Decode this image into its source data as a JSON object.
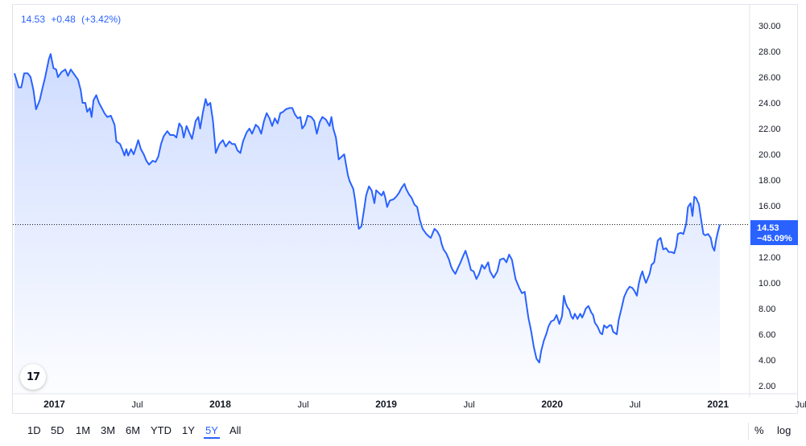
{
  "quote": {
    "price": "14.53",
    "change": "+0.48",
    "change_pct": "(+3.42%)"
  },
  "last_price_label": {
    "price": "14.53",
    "pct": "−45.09%"
  },
  "logo_text": "17",
  "colors": {
    "line": "#2962ff",
    "area_top": "#c9d8ff",
    "accent": "#2962ff",
    "text": "#131722",
    "grid": "#e0e3eb"
  },
  "toolbar": {
    "ranges": [
      "1D",
      "5D",
      "1M",
      "3M",
      "6M",
      "YTD",
      "1Y",
      "5Y",
      "All"
    ],
    "active_range": "5Y",
    "percent_label": "%",
    "log_label": "log"
  },
  "chart_data": {
    "type": "area",
    "title": "",
    "xlabel": "",
    "ylabel": "",
    "ylim": [
      1.0,
      31.0
    ],
    "y_ticks": [
      "30.00",
      "28.00",
      "26.00",
      "24.00",
      "22.00",
      "20.00",
      "18.00",
      "16.00",
      "12.00",
      "10.00",
      "8.00",
      "6.00",
      "4.00",
      "2.00"
    ],
    "x_ticks": [
      {
        "label": "2017",
        "bold": true,
        "t": 2017.0
      },
      {
        "label": "Jul",
        "bold": false,
        "t": 2017.5
      },
      {
        "label": "2018",
        "bold": true,
        "t": 2018.0
      },
      {
        "label": "Jul",
        "bold": false,
        "t": 2018.5
      },
      {
        "label": "2019",
        "bold": true,
        "t": 2019.0
      },
      {
        "label": "Jul",
        "bold": false,
        "t": 2019.5
      },
      {
        "label": "2020",
        "bold": true,
        "t": 2020.0
      },
      {
        "label": "Jul",
        "bold": false,
        "t": 2020.5
      },
      {
        "label": "2021",
        "bold": true,
        "t": 2021.0
      },
      {
        "label": "Jul",
        "bold": false,
        "t": 2021.5
      }
    ],
    "last_value": 14.53,
    "series": [
      {
        "values": [
          [
            2016.76,
            26.3
          ],
          [
            2016.785,
            25.2
          ],
          [
            2016.801,
            25.2
          ],
          [
            2016.818,
            26.3
          ],
          [
            2016.84,
            26.3
          ],
          [
            2016.857,
            26.0
          ],
          [
            2016.874,
            25.0
          ],
          [
            2016.89,
            23.5
          ],
          [
            2016.912,
            24.2
          ],
          [
            2016.928,
            25.1
          ],
          [
            2016.945,
            26.0
          ],
          [
            2016.967,
            27.4
          ],
          [
            2016.978,
            27.8
          ],
          [
            2016.995,
            26.7
          ],
          [
            2017.011,
            26.6
          ],
          [
            2017.022,
            26.0
          ],
          [
            2017.044,
            26.4
          ],
          [
            2017.066,
            26.6
          ],
          [
            2017.082,
            26.1
          ],
          [
            2017.099,
            26.6
          ],
          [
            2017.121,
            26.2
          ],
          [
            2017.143,
            25.8
          ],
          [
            2017.159,
            25.0
          ],
          [
            2017.17,
            24.0
          ],
          [
            2017.187,
            24.0
          ],
          [
            2017.198,
            23.3
          ],
          [
            2017.214,
            23.6
          ],
          [
            2017.225,
            22.9
          ],
          [
            2017.236,
            24.2
          ],
          [
            2017.253,
            24.6
          ],
          [
            2017.269,
            24.0
          ],
          [
            2017.286,
            23.6
          ],
          [
            2017.302,
            23.2
          ],
          [
            2017.319,
            22.9
          ],
          [
            2017.341,
            23.0
          ],
          [
            2017.363,
            22.3
          ],
          [
            2017.374,
            21.0
          ],
          [
            2017.396,
            20.8
          ],
          [
            2017.412,
            20.3
          ],
          [
            2017.423,
            19.9
          ],
          [
            2017.434,
            20.4
          ],
          [
            2017.445,
            19.9
          ],
          [
            2017.462,
            20.4
          ],
          [
            2017.478,
            20.0
          ],
          [
            2017.489,
            20.4
          ],
          [
            2017.506,
            21.1
          ],
          [
            2017.522,
            20.4
          ],
          [
            2017.539,
            20.0
          ],
          [
            2017.555,
            19.5
          ],
          [
            2017.571,
            19.2
          ],
          [
            2017.593,
            19.5
          ],
          [
            2017.61,
            19.4
          ],
          [
            2017.626,
            19.8
          ],
          [
            2017.643,
            20.8
          ],
          [
            2017.659,
            21.4
          ],
          [
            2017.681,
            21.8
          ],
          [
            2017.698,
            21.5
          ],
          [
            2017.72,
            21.5
          ],
          [
            2017.736,
            21.3
          ],
          [
            2017.753,
            22.4
          ],
          [
            2017.769,
            22.1
          ],
          [
            2017.78,
            21.3
          ],
          [
            2017.797,
            22.2
          ],
          [
            2017.813,
            21.7
          ],
          [
            2017.83,
            21.2
          ],
          [
            2017.852,
            22.6
          ],
          [
            2017.868,
            22.9
          ],
          [
            2017.879,
            22.0
          ],
          [
            2017.896,
            23.3
          ],
          [
            2017.912,
            24.3
          ],
          [
            2017.923,
            23.8
          ],
          [
            2017.94,
            24.0
          ],
          [
            2017.956,
            22.6
          ],
          [
            2017.973,
            20.1
          ],
          [
            2017.995,
            20.8
          ],
          [
            2018.016,
            21.1
          ],
          [
            2018.033,
            20.6
          ],
          [
            2018.055,
            21.0
          ],
          [
            2018.071,
            20.8
          ],
          [
            2018.088,
            20.8
          ],
          [
            2018.104,
            20.3
          ],
          [
            2018.121,
            20.1
          ],
          [
            2018.137,
            21.0
          ],
          [
            2018.159,
            21.7
          ],
          [
            2018.176,
            22.0
          ],
          [
            2018.192,
            21.6
          ],
          [
            2018.214,
            22.3
          ],
          [
            2018.231,
            22.1
          ],
          [
            2018.247,
            21.6
          ],
          [
            2018.264,
            22.6
          ],
          [
            2018.28,
            23.2
          ],
          [
            2018.297,
            22.8
          ],
          [
            2018.313,
            22.2
          ],
          [
            2018.329,
            22.8
          ],
          [
            2018.346,
            22.4
          ],
          [
            2018.362,
            23.2
          ],
          [
            2018.379,
            23.3
          ],
          [
            2018.395,
            23.5
          ],
          [
            2018.417,
            23.6
          ],
          [
            2018.434,
            23.6
          ],
          [
            2018.45,
            23.1
          ],
          [
            2018.467,
            22.8
          ],
          [
            2018.483,
            22.9
          ],
          [
            2018.494,
            22.0
          ],
          [
            2018.511,
            22.3
          ],
          [
            2018.527,
            23.0
          ],
          [
            2018.549,
            22.9
          ],
          [
            2018.566,
            22.6
          ],
          [
            2018.582,
            21.6
          ],
          [
            2018.599,
            22.5
          ],
          [
            2018.615,
            22.9
          ],
          [
            2018.637,
            22.7
          ],
          [
            2018.659,
            22.2
          ],
          [
            2018.67,
            22.9
          ],
          [
            2018.681,
            22.0
          ],
          [
            2018.697,
            21.3
          ],
          [
            2018.714,
            19.6
          ],
          [
            2018.73,
            19.8
          ],
          [
            2018.747,
            20.0
          ],
          [
            2018.769,
            18.4
          ],
          [
            2018.78,
            17.9
          ],
          [
            2018.802,
            17.3
          ],
          [
            2018.813,
            16.4
          ],
          [
            2018.824,
            15.3
          ],
          [
            2018.835,
            14.2
          ],
          [
            2018.851,
            14.4
          ],
          [
            2018.868,
            15.8
          ],
          [
            2018.879,
            16.8
          ],
          [
            2018.896,
            17.5
          ],
          [
            2018.912,
            17.2
          ],
          [
            2018.929,
            16.2
          ],
          [
            2018.94,
            17.2
          ],
          [
            2018.956,
            17.0
          ],
          [
            2018.973,
            16.8
          ],
          [
            2018.984,
            17.1
          ],
          [
            2018.995,
            16.6
          ],
          [
            2019.006,
            15.9
          ],
          [
            2019.022,
            16.4
          ],
          [
            2019.044,
            16.5
          ],
          [
            2019.06,
            16.7
          ],
          [
            2019.077,
            17.0
          ],
          [
            2019.093,
            17.4
          ],
          [
            2019.11,
            17.7
          ],
          [
            2019.121,
            17.3
          ],
          [
            2019.137,
            16.9
          ],
          [
            2019.154,
            16.6
          ],
          [
            2019.17,
            16.1
          ],
          [
            2019.187,
            15.9
          ],
          [
            2019.203,
            14.9
          ],
          [
            2019.22,
            14.2
          ],
          [
            2019.242,
            13.8
          ],
          [
            2019.258,
            13.6
          ],
          [
            2019.269,
            13.5
          ],
          [
            2019.291,
            14.2
          ],
          [
            2019.308,
            14.0
          ],
          [
            2019.324,
            13.6
          ],
          [
            2019.335,
            13.0
          ],
          [
            2019.346,
            12.6
          ],
          [
            2019.362,
            12.3
          ],
          [
            2019.379,
            11.8
          ],
          [
            2019.39,
            11.3
          ],
          [
            2019.401,
            11.0
          ],
          [
            2019.417,
            10.7
          ],
          [
            2019.434,
            11.2
          ],
          [
            2019.445,
            11.5
          ],
          [
            2019.461,
            12.0
          ],
          [
            2019.478,
            12.5
          ],
          [
            2019.495,
            11.8
          ],
          [
            2019.511,
            11.0
          ],
          [
            2019.527,
            10.9
          ],
          [
            2019.544,
            10.3
          ],
          [
            2019.56,
            10.7
          ],
          [
            2019.577,
            11.4
          ],
          [
            2019.593,
            11.1
          ],
          [
            2019.615,
            11.6
          ],
          [
            2019.626,
            10.9
          ],
          [
            2019.648,
            10.4
          ],
          [
            2019.67,
            10.9
          ],
          [
            2019.686,
            11.8
          ],
          [
            2019.708,
            11.9
          ],
          [
            2019.725,
            11.6
          ],
          [
            2019.741,
            12.2
          ],
          [
            2019.758,
            11.8
          ],
          [
            2019.78,
            10.3
          ],
          [
            2019.802,
            9.6
          ],
          [
            2019.818,
            9.2
          ],
          [
            2019.835,
            9.3
          ],
          [
            2019.846,
            8.3
          ],
          [
            2019.857,
            7.3
          ],
          [
            2019.873,
            6.3
          ],
          [
            2019.89,
            5.0
          ],
          [
            2019.906,
            4.1
          ],
          [
            2019.923,
            3.8
          ],
          [
            2019.934,
            4.7
          ],
          [
            2019.95,
            5.5
          ],
          [
            2019.967,
            6.1
          ],
          [
            2019.978,
            6.6
          ],
          [
            2019.994,
            7.0
          ],
          [
            2020.011,
            7.1
          ],
          [
            2020.027,
            7.5
          ],
          [
            2020.044,
            6.8
          ],
          [
            2020.06,
            7.4
          ],
          [
            2020.071,
            9.0
          ],
          [
            2020.082,
            8.4
          ],
          [
            2020.093,
            8.1
          ],
          [
            2020.104,
            7.9
          ],
          [
            2020.115,
            7.4
          ],
          [
            2020.126,
            7.2
          ],
          [
            2020.137,
            7.6
          ],
          [
            2020.153,
            7.2
          ],
          [
            2020.17,
            7.6
          ],
          [
            2020.181,
            7.3
          ],
          [
            2020.192,
            7.6
          ],
          [
            2020.203,
            8.0
          ],
          [
            2020.219,
            8.2
          ],
          [
            2020.236,
            7.7
          ],
          [
            2020.247,
            7.5
          ],
          [
            2020.258,
            6.9
          ],
          [
            2020.274,
            6.6
          ],
          [
            2020.291,
            6.1
          ],
          [
            2020.302,
            6.0
          ],
          [
            2020.313,
            6.7
          ],
          [
            2020.329,
            6.5
          ],
          [
            2020.346,
            6.7
          ],
          [
            2020.357,
            6.7
          ],
          [
            2020.368,
            6.2
          ],
          [
            2020.39,
            6.0
          ],
          [
            2020.401,
            7.1
          ],
          [
            2020.418,
            8.0
          ],
          [
            2020.434,
            8.9
          ],
          [
            2020.451,
            9.4
          ],
          [
            2020.467,
            9.7
          ],
          [
            2020.484,
            9.6
          ],
          [
            2020.495,
            9.4
          ],
          [
            2020.511,
            9.0
          ],
          [
            2020.522,
            9.9
          ],
          [
            2020.533,
            10.5
          ],
          [
            2020.544,
            10.9
          ],
          [
            2020.555,
            10.4
          ],
          [
            2020.566,
            10.0
          ],
          [
            2020.588,
            10.7
          ],
          [
            2020.599,
            11.4
          ],
          [
            2020.615,
            11.6
          ],
          [
            2020.637,
            13.3
          ],
          [
            2020.654,
            13.5
          ],
          [
            2020.67,
            12.6
          ],
          [
            2020.687,
            12.7
          ],
          [
            2020.703,
            12.4
          ],
          [
            2020.72,
            12.4
          ],
          [
            2020.736,
            12.3
          ],
          [
            2020.747,
            12.8
          ],
          [
            2020.758,
            13.8
          ],
          [
            2020.775,
            13.9
          ],
          [
            2020.791,
            13.8
          ],
          [
            2020.808,
            14.6
          ],
          [
            2020.819,
            15.9
          ],
          [
            2020.835,
            16.2
          ],
          [
            2020.846,
            15.2
          ],
          [
            2020.857,
            16.7
          ],
          [
            2020.868,
            16.6
          ],
          [
            2020.885,
            16.1
          ],
          [
            2020.901,
            14.7
          ],
          [
            2020.912,
            13.8
          ],
          [
            2020.923,
            13.7
          ],
          [
            2020.94,
            13.8
          ],
          [
            2020.956,
            13.5
          ],
          [
            2020.967,
            12.8
          ],
          [
            2020.978,
            12.5
          ],
          [
            2020.989,
            13.4
          ],
          [
            2021.0,
            14.0
          ],
          [
            2021.011,
            14.53
          ]
        ]
      }
    ]
  }
}
